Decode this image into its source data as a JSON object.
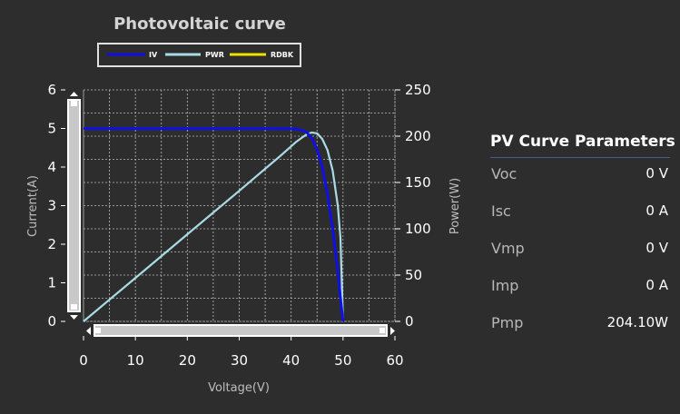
{
  "chart_data": {
    "type": "line",
    "title": "Photovoltaic curve",
    "xlabel": "Voltage(V)",
    "ylabel_left": "Current(A)",
    "ylabel_right": "Power(W)",
    "xlim": [
      0,
      60
    ],
    "ylim_left": [
      0,
      6
    ],
    "ylim_right": [
      0,
      250
    ],
    "x_ticks": [
      "0",
      "10",
      "20",
      "30",
      "40",
      "50",
      "60"
    ],
    "y_ticks_left": [
      "0",
      "1",
      "2",
      "3",
      "4",
      "5",
      "6"
    ],
    "y_ticks_right": [
      "0",
      "50",
      "100",
      "150",
      "200",
      "250"
    ],
    "grid": true,
    "legend_placement": "top",
    "series": [
      {
        "name": "IV",
        "axis": "left",
        "color": "#1010e6",
        "x": [
          0,
          10,
          20,
          30,
          35,
          38,
          40,
          41,
          42,
          43,
          44,
          45,
          46,
          47,
          48,
          49,
          49.5,
          50
        ],
        "y": [
          5,
          5,
          5,
          5,
          5,
          5,
          4.99,
          4.98,
          4.96,
          4.9,
          4.75,
          4.45,
          4.0,
          3.3,
          2.4,
          1.3,
          0.6,
          0
        ]
      },
      {
        "name": "PWR",
        "axis": "right",
        "color": "#a9dbe6",
        "x": [
          0,
          10,
          20,
          30,
          38,
          40,
          41,
          42,
          43,
          44,
          45,
          46,
          47,
          48,
          49,
          49.5,
          50
        ],
        "y": [
          0,
          47,
          94,
          141,
          179,
          189,
          194,
          198,
          202,
          204,
          203,
          197,
          185,
          163,
          125,
          90,
          0
        ]
      },
      {
        "name": "RDBK",
        "axis": "left",
        "color": "#f0e000",
        "x": [],
        "y": []
      }
    ]
  },
  "parameters": {
    "title": "PV Curve Parameters",
    "items": [
      {
        "label": "Voc",
        "value": "0 V"
      },
      {
        "label": "Isc",
        "value": "0 A"
      },
      {
        "label": "Vmp",
        "value": "0 V"
      },
      {
        "label": "Imp",
        "value": "0 A"
      },
      {
        "label": "Pmp",
        "value": "204.10W"
      }
    ]
  },
  "colors": {
    "background": "#2d2d2d",
    "grid": "#bdbdbd",
    "scrollbar": "#c8c8c8"
  }
}
